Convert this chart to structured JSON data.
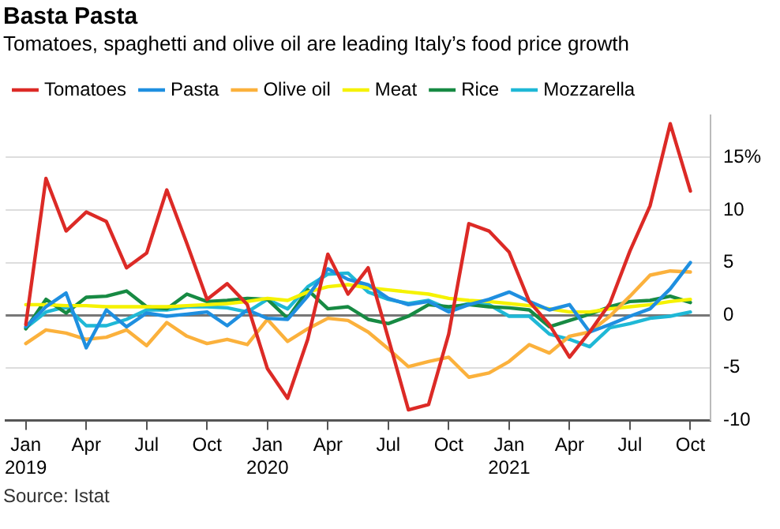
{
  "chart_data": {
    "type": "line",
    "title": "Basta Pasta",
    "subtitle": "Tomatoes, spaghetti and olive oil are leading Italy’s food price growth",
    "annotations": [
      "Source: Istat"
    ],
    "x": [
      "2019-01",
      "2019-02",
      "2019-03",
      "2019-04",
      "2019-05",
      "2019-06",
      "2019-07",
      "2019-08",
      "2019-09",
      "2019-10",
      "2019-11",
      "2019-12",
      "2020-01",
      "2020-02",
      "2020-03",
      "2020-04",
      "2020-05",
      "2020-06",
      "2020-07",
      "2020-08",
      "2020-09",
      "2020-10",
      "2020-11",
      "2020-12",
      "2021-01",
      "2021-02",
      "2021-03",
      "2021-04",
      "2021-05",
      "2021-06",
      "2021-07",
      "2021-08",
      "2021-09",
      "2021-10"
    ],
    "series": [
      {
        "name": "Tomatoes",
        "color": "#dc2a26",
        "values": [
          -0.9,
          13.0,
          8.0,
          9.8,
          8.9,
          4.5,
          5.9,
          11.9,
          6.8,
          1.5,
          3.0,
          1.0,
          -5.1,
          -7.9,
          -2.3,
          5.8,
          2.0,
          4.5,
          -2.2,
          -9.0,
          -8.5,
          -1.8,
          8.7,
          8.0,
          6.0,
          1.3,
          -0.9,
          -4.0,
          -1.6,
          1.1,
          6.1,
          10.4,
          18.2,
          11.8
        ]
      },
      {
        "name": "Pasta",
        "color": "#1f8fe0",
        "values": [
          -1.1,
          0.8,
          2.1,
          -3.1,
          0.5,
          -1.1,
          0.2,
          -0.1,
          0.1,
          0.3,
          -1.0,
          0.5,
          -0.3,
          -0.4,
          1.8,
          4.4,
          3.4,
          2.9,
          1.6,
          1.0,
          1.3,
          0.3,
          1.0,
          1.5,
          2.2,
          1.3,
          0.5,
          1.0,
          -1.6,
          -0.9,
          -0.1,
          0.6,
          2.5,
          5.0
        ]
      },
      {
        "name": "Olive oil",
        "color": "#fbb13c",
        "values": [
          -2.7,
          -1.4,
          -1.7,
          -2.3,
          -2.1,
          -1.4,
          -2.9,
          -0.7,
          -2.0,
          -2.7,
          -2.3,
          -2.8,
          -0.4,
          -2.5,
          -1.3,
          -0.3,
          -0.5,
          -1.6,
          -3.2,
          -4.9,
          -4.4,
          -4.0,
          -5.9,
          -5.5,
          -4.4,
          -2.8,
          -3.6,
          -2.0,
          -1.6,
          -0.1,
          1.8,
          3.8,
          4.2,
          4.1
        ]
      },
      {
        "name": "Meat",
        "color": "#f5f200",
        "values": [
          1.0,
          1.0,
          0.9,
          0.9,
          0.8,
          0.8,
          0.8,
          0.8,
          0.9,
          1.0,
          1.1,
          1.3,
          1.6,
          1.4,
          2.2,
          2.7,
          2.9,
          2.6,
          2.4,
          2.2,
          2.0,
          1.6,
          1.4,
          1.3,
          1.1,
          0.9,
          0.6,
          0.3,
          0.3,
          0.6,
          0.8,
          1.0,
          1.3,
          1.5
        ]
      },
      {
        "name": "Rice",
        "color": "#178a43",
        "values": [
          -1.3,
          1.5,
          0.2,
          1.7,
          1.8,
          2.3,
          0.8,
          0.6,
          2.0,
          1.3,
          1.4,
          1.6,
          1.5,
          -0.3,
          2.4,
          0.6,
          0.8,
          -0.4,
          -0.8,
          -0.1,
          1.0,
          0.8,
          1.0,
          0.8,
          0.7,
          0.5,
          -1.1,
          -0.5,
          0.1,
          0.8,
          1.3,
          1.4,
          1.8,
          1.2
        ]
      },
      {
        "name": "Mozzarella",
        "color": "#1fb8d6",
        "values": [
          -1.2,
          0.3,
          0.8,
          -1.0,
          -1.0,
          -0.4,
          0.5,
          0.5,
          0.8,
          0.8,
          0.7,
          0.3,
          1.5,
          0.6,
          2.7,
          3.9,
          4.0,
          2.2,
          1.5,
          1.1,
          1.4,
          0.6,
          1.1,
          1.0,
          -0.1,
          -0.1,
          -1.8,
          -2.3,
          -3.0,
          -1.2,
          -0.8,
          -0.3,
          -0.1,
          0.3
        ]
      }
    ],
    "xlim": [
      "2018-12",
      "2021-11"
    ],
    "xticks": [
      {
        "value": "2019-01",
        "label": "Jan 2019"
      },
      {
        "value": "2019-04",
        "label": "Apr"
      },
      {
        "value": "2019-07",
        "label": "Jul"
      },
      {
        "value": "2019-10",
        "label": "Oct"
      },
      {
        "value": "2020-01",
        "label": "Jan 2020"
      },
      {
        "value": "2020-04",
        "label": "Apr"
      },
      {
        "value": "2020-07",
        "label": "Jul"
      },
      {
        "value": "2020-10",
        "label": "Oct"
      },
      {
        "value": "2021-01",
        "label": "Jan 2021"
      },
      {
        "value": "2021-04",
        "label": "Apr"
      },
      {
        "value": "2021-07",
        "label": "Jul"
      },
      {
        "value": "2021-10",
        "label": "Oct"
      }
    ],
    "ylim": [
      -10,
      19
    ],
    "yticks": [
      -10,
      -5,
      0,
      5,
      10,
      {
        "value": 15,
        "label": "15%"
      }
    ],
    "grid": "y",
    "legend": "top left",
    "marker": "none",
    "line_style": "solid"
  }
}
